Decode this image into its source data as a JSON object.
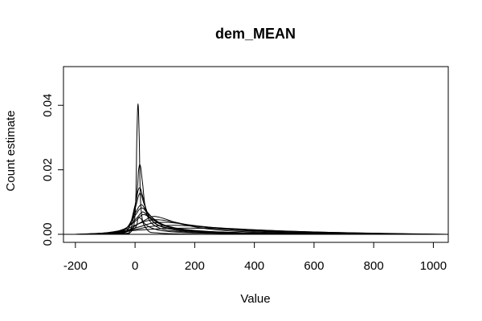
{
  "chart_data": {
    "type": "line",
    "title": "dem_MEAN",
    "xlabel": "Value",
    "ylabel": "Count estimate",
    "xlim": [
      -240,
      1050
    ],
    "ylim": [
      -0.0025,
      0.052
    ],
    "x_ticks": [
      -200,
      0,
      200,
      400,
      600,
      800,
      1000
    ],
    "x_tick_labels": [
      "-200",
      "0",
      "200",
      "400",
      "600",
      "800",
      "1000"
    ],
    "y_ticks": [
      0.0,
      0.02,
      0.04
    ],
    "y_tick_labels": [
      "0.00",
      "0.02",
      "0.04"
    ],
    "grid": false,
    "legend": "none",
    "line_color": "#000000",
    "series": [
      {
        "x": [
          -60,
          -20,
          0,
          6,
          10,
          14,
          20,
          40,
          80,
          160,
          300,
          600
        ],
        "y": [
          0,
          0.0002,
          0.006,
          0.03,
          0.0405,
          0.03,
          0.008,
          0.0015,
          0.0004,
          0.0001,
          0,
          0
        ]
      },
      {
        "x": [
          -80,
          -20,
          5,
          12,
          18,
          25,
          40,
          80,
          160,
          300,
          600,
          900
        ],
        "y": [
          0,
          0.0005,
          0.012,
          0.02,
          0.0212,
          0.016,
          0.006,
          0.002,
          0.0008,
          0.0003,
          0.0001,
          0
        ]
      },
      {
        "x": [
          -100,
          -30,
          0,
          10,
          18,
          28,
          50,
          100,
          200,
          400,
          700
        ],
        "y": [
          0,
          0.0008,
          0.009,
          0.0135,
          0.0142,
          0.011,
          0.005,
          0.002,
          0.0008,
          0.0002,
          0
        ]
      },
      {
        "x": [
          -100,
          -30,
          0,
          12,
          20,
          32,
          60,
          120,
          250,
          500,
          800
        ],
        "y": [
          0,
          0.001,
          0.008,
          0.012,
          0.0125,
          0.009,
          0.004,
          0.0018,
          0.0007,
          0.0002,
          0
        ]
      },
      {
        "x": [
          -120,
          -40,
          0,
          15,
          25,
          40,
          80,
          150,
          300,
          600,
          900
        ],
        "y": [
          0,
          0.001,
          0.0065,
          0.0088,
          0.009,
          0.007,
          0.0035,
          0.0016,
          0.0006,
          0.0002,
          0
        ]
      },
      {
        "x": [
          -120,
          -40,
          0,
          15,
          28,
          45,
          90,
          160,
          300,
          600,
          900
        ],
        "y": [
          0,
          0.0012,
          0.0058,
          0.0078,
          0.008,
          0.0062,
          0.0032,
          0.0015,
          0.0006,
          0.0002,
          0
        ]
      },
      {
        "x": [
          -150,
          -50,
          0,
          20,
          30,
          50,
          100,
          200,
          400,
          800
        ],
        "y": [
          0,
          0.001,
          0.0045,
          0.0066,
          0.0068,
          0.0052,
          0.0028,
          0.0012,
          0.0004,
          0
        ]
      },
      {
        "x": [
          -150,
          -50,
          0,
          20,
          35,
          55,
          100,
          200,
          400,
          800
        ],
        "y": [
          0,
          0.0012,
          0.004,
          0.0058,
          0.006,
          0.0048,
          0.0026,
          0.0011,
          0.0004,
          0
        ]
      },
      {
        "x": [
          -150,
          -40,
          10,
          50,
          70,
          100,
          150,
          250,
          400,
          700,
          1000
        ],
        "y": [
          0,
          0.0008,
          0.0032,
          0.0052,
          0.0055,
          0.0048,
          0.0033,
          0.0016,
          0.0007,
          0.0002,
          0
        ]
      },
      {
        "x": [
          -180,
          -60,
          0,
          40,
          80,
          130,
          200,
          300,
          450,
          700,
          1000
        ],
        "y": [
          0,
          0.0008,
          0.0028,
          0.0042,
          0.0045,
          0.0038,
          0.0026,
          0.0015,
          0.0008,
          0.0003,
          0
        ]
      },
      {
        "x": [
          -180,
          -60,
          10,
          60,
          110,
          160,
          250,
          400,
          600,
          900
        ],
        "y": [
          0,
          0.0006,
          0.0022,
          0.0035,
          0.0037,
          0.0032,
          0.0022,
          0.0012,
          0.0005,
          0
        ]
      },
      {
        "x": [
          -200,
          -80,
          0,
          60,
          130,
          200,
          300,
          450,
          650,
          900,
          1050
        ],
        "y": [
          0,
          0.0005,
          0.0015,
          0.0025,
          0.0028,
          0.0025,
          0.0019,
          0.0012,
          0.0006,
          0.0002,
          0
        ]
      },
      {
        "x": [
          -200,
          -100,
          0,
          100,
          200,
          300,
          400,
          500,
          650,
          850,
          1050
        ],
        "y": [
          0,
          0.0004,
          0.0012,
          0.0018,
          0.0019,
          0.0017,
          0.0014,
          0.001,
          0.0006,
          0.0002,
          0
        ]
      },
      {
        "x": [
          -50,
          0,
          10,
          20,
          30,
          60,
          120,
          250,
          500
        ],
        "y": [
          0,
          0.002,
          0.005,
          0.0048,
          0.0035,
          0.0018,
          0.0008,
          0.0003,
          0
        ]
      }
    ]
  }
}
